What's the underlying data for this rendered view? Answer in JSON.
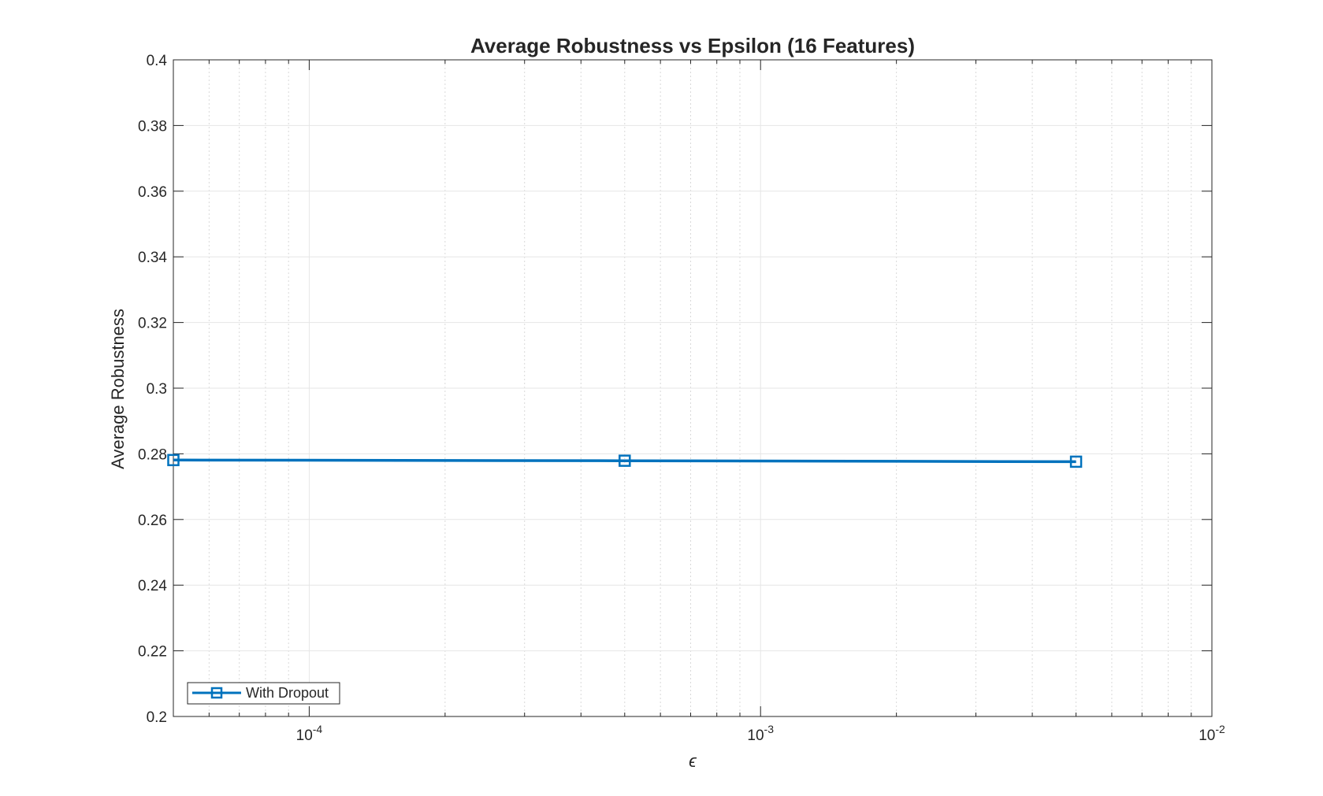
{
  "chart_data": {
    "type": "line",
    "title": "Average Robustness vs Epsilon (16 Features)",
    "xlabel": "ϵ",
    "ylabel": "Average Robustness",
    "xscale": "log",
    "xlim": [
      5e-05,
      0.01
    ],
    "ylim": [
      0.2,
      0.4
    ],
    "x_ticks": [
      {
        "value": 0.0001,
        "base": "10",
        "exp": "-4"
      },
      {
        "value": 0.001,
        "base": "10",
        "exp": "-3"
      },
      {
        "value": 0.01,
        "base": "10",
        "exp": "-2"
      }
    ],
    "y_ticks": [
      {
        "value": 0.2,
        "label": "0.2"
      },
      {
        "value": 0.22,
        "label": "0.22"
      },
      {
        "value": 0.24,
        "label": "0.24"
      },
      {
        "value": 0.26,
        "label": "0.26"
      },
      {
        "value": 0.28,
        "label": "0.28"
      },
      {
        "value": 0.3,
        "label": "0.3"
      },
      {
        "value": 0.32,
        "label": "0.32"
      },
      {
        "value": 0.34,
        "label": "0.34"
      },
      {
        "value": 0.36,
        "label": "0.36"
      },
      {
        "value": 0.38,
        "label": "0.38"
      },
      {
        "value": 0.4,
        "label": "0.4"
      }
    ],
    "grid": true,
    "minor_grid": true,
    "legend_location": "bottom-left",
    "series": [
      {
        "name": "With Dropout",
        "color": "#0072BD",
        "marker": "square",
        "x": [
          5e-05,
          0.0005,
          0.005
        ],
        "y": [
          0.2781,
          0.2779,
          0.2776
        ]
      }
    ]
  }
}
